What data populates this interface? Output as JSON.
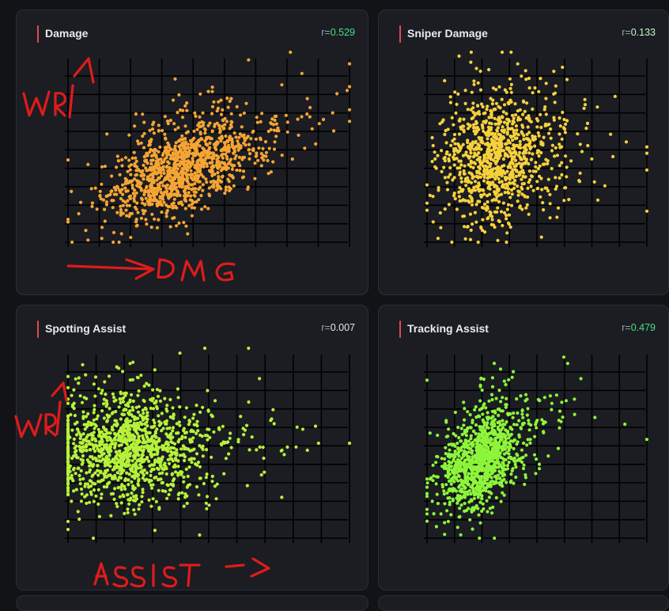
{
  "cards": [
    {
      "title": "Damage",
      "r_prefix": "r=",
      "r_value": "0.529",
      "r_color": "#4ade80"
    },
    {
      "title": "Sniper Damage",
      "r_prefix": "r=",
      "r_value": "0.133",
      "r_color": "#bbf7d0"
    },
    {
      "title": "Spotting Assist",
      "r_prefix": "r=",
      "r_value": "0.007",
      "r_color": "#e5e7eb"
    },
    {
      "title": "Tracking Assist",
      "r_prefix": "r=",
      "r_value": "0.479",
      "r_color": "#4ade80"
    }
  ],
  "annotations": {
    "wr_1": "WR",
    "dmg": "DMG",
    "wr_2": "WR",
    "assist": "ASSIST"
  },
  "accent_color": "#e5484d",
  "chart_data": [
    {
      "type": "scatter",
      "title": "Damage",
      "correlation": 0.529,
      "point_color": "#f5a534",
      "point_count_approx": 1200,
      "xlim": [
        0,
        100
      ],
      "ylim": [
        0,
        100
      ],
      "grid": true,
      "cluster": {
        "center": [
          37,
          35
        ],
        "spread": [
          12,
          11
        ],
        "trend": 0.55
      },
      "outliers": [
        [
          0,
          12
        ],
        [
          12,
          2
        ],
        [
          47,
          78
        ],
        [
          78,
          58
        ]
      ]
    },
    {
      "type": "scatter",
      "title": "Sniper Damage",
      "correlation": 0.133,
      "point_color": "#f6d13c",
      "point_count_approx": 1000,
      "xlim": [
        0,
        100
      ],
      "ylim": [
        0,
        100
      ],
      "grid": true,
      "cluster": {
        "center": [
          28,
          42
        ],
        "spread": [
          12,
          16
        ],
        "trend": 0.15
      },
      "outliers": [
        [
          100,
          38
        ],
        [
          5,
          2
        ],
        [
          8,
          85
        ]
      ]
    },
    {
      "type": "scatter",
      "title": "Spotting Assist",
      "correlation": 0.007,
      "point_color": "#b6f23a",
      "point_count_approx": 1300,
      "xlim": [
        0,
        100
      ],
      "ylim": [
        0,
        100
      ],
      "grid": true,
      "cluster": {
        "center": [
          18,
          45
        ],
        "spread": [
          13,
          14
        ],
        "trend": 0.02
      },
      "outliers": [
        [
          72,
          62
        ],
        [
          81,
          48
        ],
        [
          89,
          50
        ],
        [
          100,
          50
        ],
        [
          68,
          84
        ],
        [
          9,
          0
        ],
        [
          4,
          10
        ]
      ]
    },
    {
      "type": "scatter",
      "title": "Tracking Assist",
      "correlation": 0.479,
      "point_color": "#8df53a",
      "point_count_approx": 1100,
      "xlim": [
        0,
        100
      ],
      "ylim": [
        0,
        100
      ],
      "grid": true,
      "cluster": {
        "center": [
          22,
          38
        ],
        "spread": [
          9,
          12
        ],
        "trend": 0.55
      },
      "outliers": [
        [
          64,
          92
        ],
        [
          70,
          84
        ],
        [
          90,
          60
        ],
        [
          100,
          52
        ],
        [
          8,
          2
        ]
      ]
    }
  ]
}
